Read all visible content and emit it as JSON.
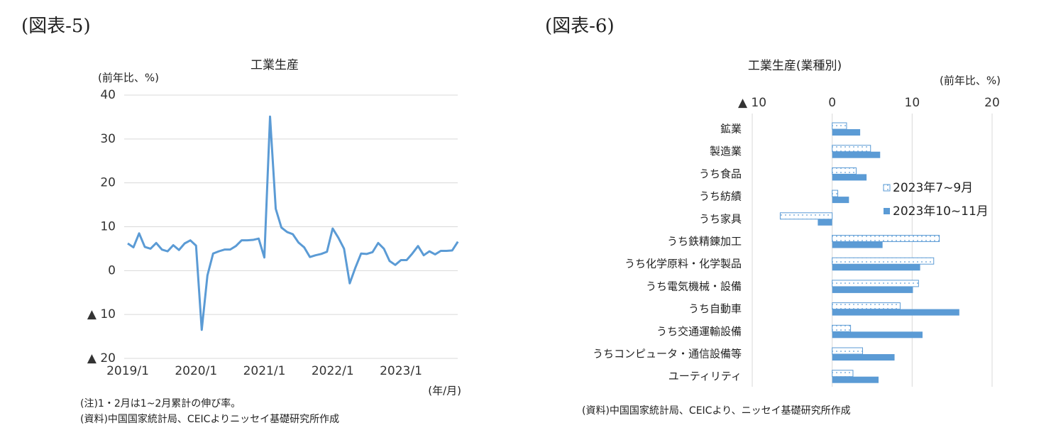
{
  "chart_data": [
    {
      "type": "line",
      "figure_label": "(図表-5)",
      "title": "工業生産",
      "y_label": "(前年比、%)",
      "x_label": "(年/月)",
      "notes": [
        "(注)1・2月は1~2月累計の伸び率。",
        "(資料)中国国家統計局、CEICよりニッセイ基礎研究所作成"
      ],
      "categories": [
        "2019/1",
        null,
        null,
        null,
        null,
        null,
        null,
        null,
        null,
        null,
        null,
        null,
        "2020/1",
        null,
        null,
        null,
        null,
        null,
        null,
        null,
        null,
        null,
        null,
        null,
        "2021/1",
        null,
        null,
        null,
        null,
        null,
        null,
        null,
        null,
        null,
        null,
        null,
        "2022/1",
        null,
        null,
        null,
        null,
        null,
        null,
        null,
        null,
        null,
        null,
        null,
        "2023/1",
        null,
        null,
        null,
        null,
        null,
        null,
        null,
        null,
        null,
        null
      ],
      "values": [
        6.2,
        5.3,
        8.5,
        5.4,
        5.0,
        6.3,
        4.8,
        4.4,
        5.8,
        4.7,
        6.2,
        6.9,
        5.7,
        -13.5,
        -1.1,
        3.9,
        4.4,
        4.8,
        4.8,
        5.6,
        6.9,
        6.9,
        7.0,
        7.3,
        3.0,
        35.1,
        14.1,
        9.8,
        8.8,
        8.3,
        6.4,
        5.3,
        3.1,
        3.5,
        3.8,
        4.3,
        9.6,
        7.5,
        5.0,
        -2.9,
        0.7,
        3.9,
        3.8,
        4.2,
        6.3,
        5.0,
        2.2,
        1.3,
        2.4,
        2.4,
        3.9,
        5.6,
        3.5,
        4.4,
        3.7,
        4.5,
        4.5,
        4.6,
        6.6
      ],
      "color": "#5b9bd5",
      "ylim": [
        -20,
        40
      ],
      "yticks": [
        {
          "value": -20,
          "label": "▲ 20"
        },
        {
          "value": -10,
          "label": "▲ 10"
        },
        0,
        10,
        20,
        30,
        40
      ],
      "grid": true
    },
    {
      "type": "bar",
      "orientation": "horizontal",
      "figure_label": "(図表-6)",
      "title": "工業生産(業種別)",
      "x_label": "(前年比、%)",
      "notes": [
        "(資料)中国国家統計局、CEICより、ニッセイ基礎研究所作成"
      ],
      "categories": [
        "鉱業",
        "製造業",
        "うち食品",
        "うち紡績",
        "うち家具",
        "うち鉄精錬加工",
        "うち化学原料・化学製品",
        "うち電気機械・設備",
        "うち自動車",
        "うち交通運輸設備",
        "うちコンピュータ・通信設備等",
        "ユーティリティ"
      ],
      "series": [
        {
          "name": "2023年7~9月",
          "color": "#5b9bd5",
          "pattern": "dotted",
          "values": [
            1.8,
            4.8,
            3.0,
            0.7,
            -6.5,
            13.4,
            12.7,
            10.8,
            8.5,
            2.3,
            3.8,
            2.6
          ]
        },
        {
          "name": "2023年10~11月",
          "color": "#5b9bd5",
          "pattern": "solid",
          "values": [
            3.5,
            6.0,
            4.3,
            2.1,
            -1.8,
            6.3,
            11.0,
            10.1,
            15.9,
            11.3,
            7.8,
            5.8
          ]
        }
      ],
      "xlim": [
        -10,
        20
      ],
      "xticks": [
        {
          "value": -10,
          "label": "▲ 10"
        },
        0,
        10,
        20
      ],
      "grid": true,
      "legend": "right"
    }
  ]
}
